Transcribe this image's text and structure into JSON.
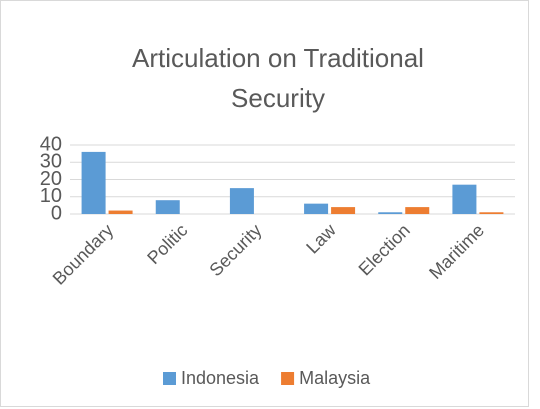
{
  "chart_data": {
    "type": "bar",
    "title": "Articulation on Traditional Security",
    "categories": [
      "Boundary",
      "Politic",
      "Security",
      "Law",
      "Election",
      "Maritime"
    ],
    "series": [
      {
        "name": "Indonesia",
        "color": "#5b9bd5",
        "values": [
          36,
          8,
          15,
          6,
          1,
          17
        ]
      },
      {
        "name": "Malaysia",
        "color": "#ed7d31",
        "values": [
          2,
          0,
          0,
          4,
          4,
          1
        ]
      }
    ],
    "ylim": [
      0,
      40
    ],
    "yticks": [
      0,
      10,
      20,
      30,
      40
    ],
    "grid": true,
    "legend": "bottom"
  }
}
